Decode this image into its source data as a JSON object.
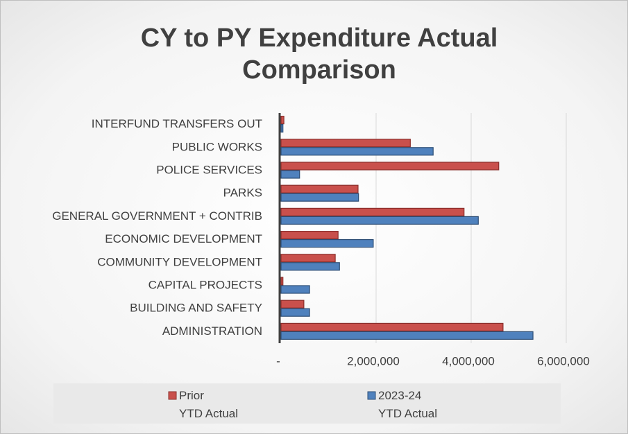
{
  "chart_data": {
    "type": "bar",
    "orientation": "horizontal",
    "title": "CY to PY Expenditure Actual Comparison",
    "categories": [
      "ADMINISTRATION",
      "BUILDING AND SAFETY",
      "CAPITAL PROJECTS",
      "COMMUNITY DEVELOPMENT",
      "ECONOMIC DEVELOPMENT",
      "GENERAL GOVERNMENT + CONTRIB",
      "PARKS",
      "POLICE SERVICES",
      "PUBLIC WORKS",
      "INTERFUND TRANSFERS OUT"
    ],
    "series": [
      {
        "name": "Prior\nYTD  Actual",
        "color": "#c9504c",
        "values": [
          4670000,
          480000,
          40000,
          1140000,
          1200000,
          3850000,
          1620000,
          4580000,
          2720000,
          60000
        ]
      },
      {
        "name": "2023-24\nYTD Actual",
        "color": "#4f81bd",
        "values": [
          5300000,
          600000,
          600000,
          1230000,
          1940000,
          4150000,
          1630000,
          390000,
          3200000,
          40000
        ]
      }
    ],
    "xlim": [
      0,
      6000000
    ],
    "xticks": [
      {
        "value": 0,
        "label": "-"
      },
      {
        "value": 2000000,
        "label": "2,000,000"
      },
      {
        "value": 4000000,
        "label": "4,000,000"
      },
      {
        "value": 6000000,
        "label": "6,000,000"
      }
    ],
    "grid": true
  }
}
